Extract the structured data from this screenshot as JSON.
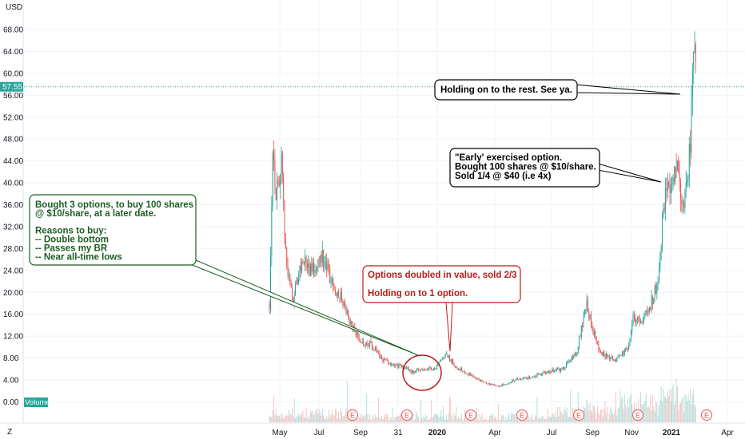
{
  "chart_data": {
    "type": "candlestick",
    "currency": "USD",
    "last_price": "57.55",
    "volume_label": "Volume",
    "y_ticks": [
      "68.00",
      "64.00",
      "60.00",
      "56.00",
      "52.00",
      "48.00",
      "44.00",
      "40.00",
      "36.00",
      "32.00",
      "28.00",
      "24.00",
      "20.00",
      "16.00",
      "12.00",
      "8.00",
      "4.00",
      "0.00"
    ],
    "y_range": [
      -2,
      71
    ],
    "x_labels": [
      "May",
      "Jul",
      "Sep",
      "31",
      "2020",
      "Apr",
      "Jul",
      "Sep",
      "Nov",
      "2021",
      "Apr"
    ],
    "earnings_markers": [
      "E",
      "E",
      "E",
      "E",
      "E",
      "E",
      "E"
    ],
    "colors": {
      "up": "#26a69a",
      "down": "#ef5350",
      "green_callout": "#1b5e20",
      "red_callout": "#b71c1c",
      "price_line": "#26a69a"
    },
    "price_path": [
      {
        "date": "2019-04-15",
        "price": 18
      },
      {
        "date": "2019-04-20",
        "price": 47
      },
      {
        "date": "2019-04-25",
        "price": 38
      },
      {
        "date": "2019-05-03",
        "price": 44
      },
      {
        "date": "2019-05-12",
        "price": 24
      },
      {
        "date": "2019-05-22",
        "price": 19
      },
      {
        "date": "2019-06-05",
        "price": 26
      },
      {
        "date": "2019-06-20",
        "price": 24
      },
      {
        "date": "2019-07-05",
        "price": 27
      },
      {
        "date": "2019-07-20",
        "price": 22
      },
      {
        "date": "2019-08-05",
        "price": 19
      },
      {
        "date": "2019-08-20",
        "price": 14
      },
      {
        "date": "2019-09-05",
        "price": 11
      },
      {
        "date": "2019-09-20",
        "price": 10.5
      },
      {
        "date": "2019-10-05",
        "price": 8
      },
      {
        "date": "2019-10-20",
        "price": 7
      },
      {
        "date": "2019-11-05",
        "price": 6.5
      },
      {
        "date": "2019-11-25",
        "price": 5.5
      },
      {
        "date": "2019-12-10",
        "price": 6
      },
      {
        "date": "2019-12-30",
        "price": 6.2
      },
      {
        "date": "2020-01-15",
        "price": 8.5
      },
      {
        "date": "2020-01-30",
        "price": 6.5
      },
      {
        "date": "2020-02-20",
        "price": 5
      },
      {
        "date": "2020-03-15",
        "price": 3.5
      },
      {
        "date": "2020-04-05",
        "price": 2.8
      },
      {
        "date": "2020-05-01",
        "price": 4
      },
      {
        "date": "2020-05-25",
        "price": 4.5
      },
      {
        "date": "2020-06-20",
        "price": 5.5
      },
      {
        "date": "2020-07-15",
        "price": 6
      },
      {
        "date": "2020-08-05",
        "price": 9
      },
      {
        "date": "2020-08-20",
        "price": 18
      },
      {
        "date": "2020-08-28",
        "price": 14
      },
      {
        "date": "2020-09-10",
        "price": 9
      },
      {
        "date": "2020-10-05",
        "price": 7.5
      },
      {
        "date": "2020-10-25",
        "price": 10
      },
      {
        "date": "2020-11-01",
        "price": 16
      },
      {
        "date": "2020-11-12",
        "price": 14
      },
      {
        "date": "2020-11-25",
        "price": 17
      },
      {
        "date": "2020-12-10",
        "price": 22
      },
      {
        "date": "2020-12-20",
        "price": 38
      },
      {
        "date": "2021-01-01",
        "price": 40
      },
      {
        "date": "2021-01-08",
        "price": 45
      },
      {
        "date": "2021-01-15",
        "price": 35
      },
      {
        "date": "2021-01-22",
        "price": 38
      },
      {
        "date": "2021-01-29",
        "price": 48
      },
      {
        "date": "2021-02-03",
        "price": 64
      },
      {
        "date": "2021-02-07",
        "price": 57.55
      }
    ]
  },
  "annotations": {
    "buy_options": {
      "lines": [
        "Bought 3 options, to buy 100 shares",
        "@ $10/share, at a later date.",
        "",
        "Reasons to buy:",
        "-- Double bottom",
        "-- Passes my BR",
        "-- Near all-time lows"
      ]
    },
    "doubled": {
      "lines": [
        "Options doubled in value, sold 2/3",
        "",
        "Holding on to 1 option."
      ]
    },
    "early_exercise": {
      "lines": [
        "\"Early' exercised option.",
        "Bought 100 shares @ $10/share.",
        "Sold 1/4 @ $40 (i.e 4x)"
      ]
    },
    "holding": {
      "lines": [
        "Holding on to the rest.  See ya."
      ]
    }
  },
  "footer": {
    "timezone_button": "Z"
  }
}
